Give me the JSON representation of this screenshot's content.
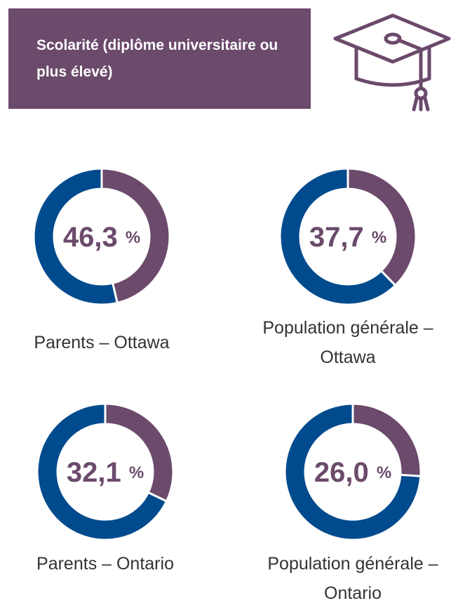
{
  "header": {
    "title": "Scolarité (diplôme universitaire ou plus élevé)"
  },
  "chart_data": [
    {
      "type": "pie",
      "donut": true,
      "label": "Parents – Ottawa",
      "values": [
        46.3
      ],
      "value_labels": [
        "46,3 %"
      ],
      "color": "#6b4a6b",
      "rest_color": "#004b8d"
    },
    {
      "type": "pie",
      "donut": true,
      "label": "Population générale – Ottawa",
      "values": [
        37.7
      ],
      "value_labels": [
        "37,7 %"
      ],
      "color": "#6b4a6b",
      "rest_color": "#004b8d"
    },
    {
      "type": "pie",
      "donut": true,
      "label": "Parents – Ontario",
      "values": [
        32.1
      ],
      "value_labels": [
        "32,1 %"
      ],
      "color": "#6b4a6b",
      "rest_color": "#004b8d"
    },
    {
      "type": "pie",
      "donut": true,
      "label": "Population générale – Ontario",
      "values": [
        26.0
      ],
      "value_labels": [
        "26,0 %"
      ],
      "color": "#6b4a6b",
      "rest_color": "#004b8d"
    }
  ]
}
